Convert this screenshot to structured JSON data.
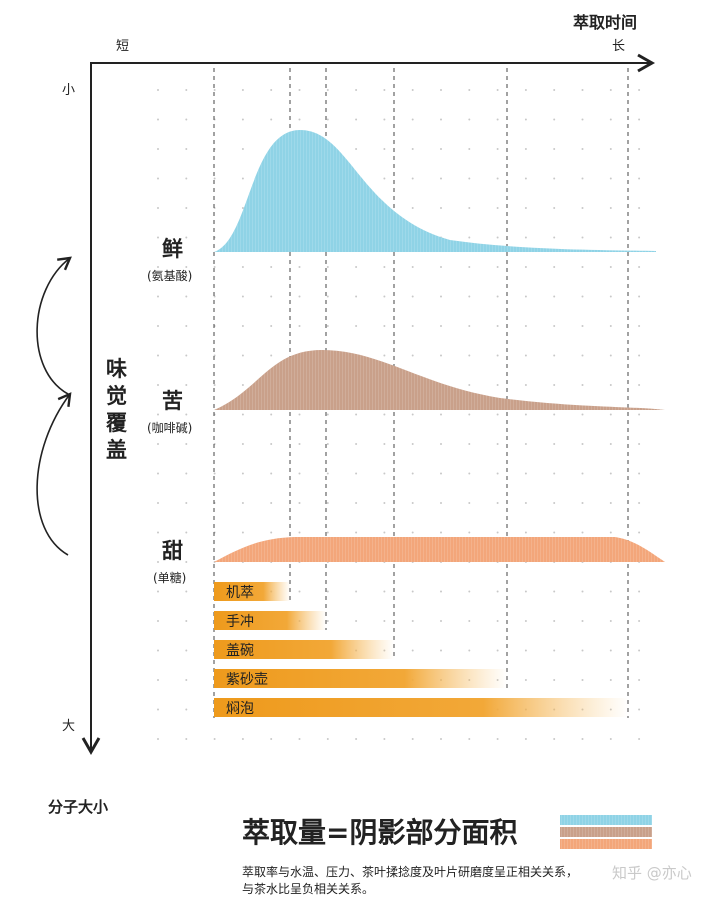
{
  "axes": {
    "x_title": "萃取时间",
    "x_short": "短",
    "x_long": "长",
    "y_small": "小",
    "y_large": "大",
    "y_title": "分子大小",
    "coverage_label": [
      "味",
      "觉",
      "覆",
      "盖"
    ]
  },
  "curves": [
    {
      "name": "鲜",
      "sub": "(氨基酸)",
      "color": "#8fd3e6"
    },
    {
      "name": "苦",
      "sub": "(咖啡碱)",
      "color": "#c9a08a"
    },
    {
      "name": "甜",
      "sub": "(单糖)",
      "color": "#f3a67a"
    }
  ],
  "methods": [
    {
      "label": "机萃",
      "relative_time": 1
    },
    {
      "label": "手冲",
      "relative_time": 2
    },
    {
      "label": "盖碗",
      "relative_time": 3
    },
    {
      "label": "紫砂壶",
      "relative_time": 4
    },
    {
      "label": "焖泡",
      "relative_time": 5
    }
  ],
  "bar_color": "#ee9a1c",
  "legend": {
    "title": "萃取量=阴影部分面积",
    "note_line1": "萃取率与水温、压力、茶叶揉捻度及叶片研磨度呈正相关关系，",
    "note_line2": "与茶水比呈负相关关系。"
  },
  "watermark": "知乎 @亦心"
}
